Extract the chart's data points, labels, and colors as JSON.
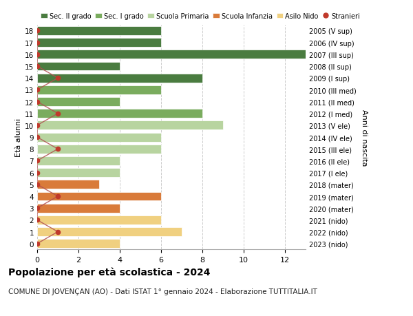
{
  "ages": [
    18,
    17,
    16,
    15,
    14,
    13,
    12,
    11,
    10,
    9,
    8,
    7,
    6,
    5,
    4,
    3,
    2,
    1,
    0
  ],
  "right_labels": [
    "2005 (V sup)",
    "2006 (IV sup)",
    "2007 (III sup)",
    "2008 (II sup)",
    "2009 (I sup)",
    "2010 (III med)",
    "2011 (II med)",
    "2012 (I med)",
    "2013 (V ele)",
    "2014 (IV ele)",
    "2015 (III ele)",
    "2016 (II ele)",
    "2017 (I ele)",
    "2018 (mater)",
    "2019 (mater)",
    "2020 (mater)",
    "2021 (nido)",
    "2022 (nido)",
    "2023 (nido)"
  ],
  "bar_values": [
    6,
    6,
    13,
    4,
    8,
    6,
    4,
    8,
    9,
    6,
    6,
    4,
    4,
    3,
    6,
    4,
    6,
    7,
    4
  ],
  "bar_colors": [
    "#4a7c40",
    "#4a7c40",
    "#4a7c40",
    "#4a7c40",
    "#4a7c40",
    "#7aac5e",
    "#7aac5e",
    "#7aac5e",
    "#b8d4a0",
    "#b8d4a0",
    "#b8d4a0",
    "#b8d4a0",
    "#b8d4a0",
    "#d97b3a",
    "#d97b3a",
    "#d97b3a",
    "#f0d080",
    "#f0d080",
    "#f0d080"
  ],
  "stranieri_values": [
    0,
    0,
    0,
    0,
    1,
    0,
    0,
    1,
    0,
    0,
    1,
    0,
    0,
    0,
    1,
    0,
    0,
    1,
    0
  ],
  "legend_labels": [
    "Sec. II grado",
    "Sec. I grado",
    "Scuola Primaria",
    "Scuola Infanzia",
    "Asilo Nido",
    "Stranieri"
  ],
  "legend_colors": [
    "#4a7c40",
    "#7aac5e",
    "#b8d4a0",
    "#d97b3a",
    "#f0d080",
    "#c0392b"
  ],
  "title": "Popolazione per età scolastica - 2024",
  "subtitle": "COMUNE DI JOVENÇAN (AO) - Dati ISTAT 1° gennaio 2024 - Elaborazione TUTTITALIA.IT",
  "ylabel_left": "Età alunni",
  "ylabel_right": "Anni di nascita",
  "xlim": [
    0,
    13
  ],
  "stranieri_color": "#c0392b",
  "stranieri_line_color": "#b05050",
  "background_color": "#ffffff",
  "grid_color": "#cccccc"
}
